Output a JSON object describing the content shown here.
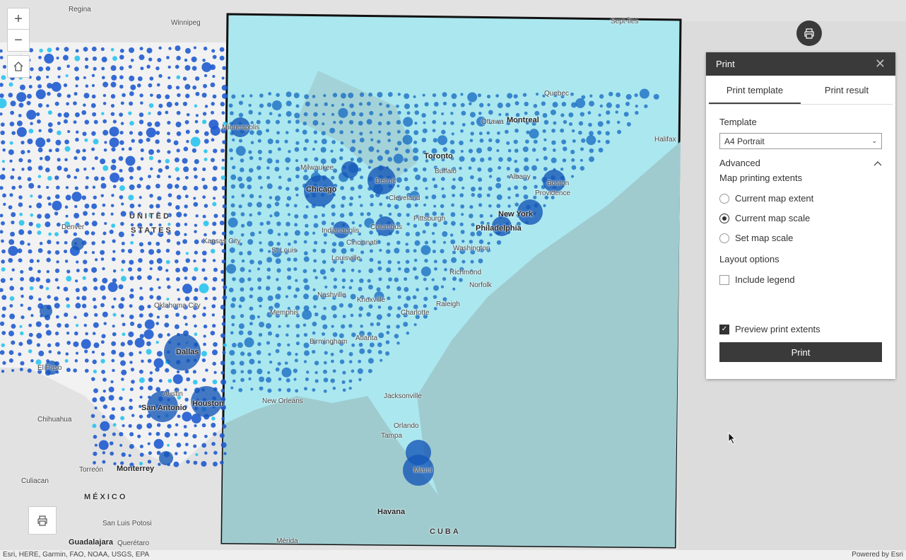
{
  "map": {
    "labels": {
      "regina": "Regina",
      "winnipeg": "Winnipeg",
      "septiles": "Sept-Îles",
      "quebec": "Quebec",
      "ottawa": "Ottawa",
      "montreal": "Montreal",
      "halifax": "Halifax",
      "toronto": "Toronto",
      "minneapolis": "Minneapolis",
      "milwaukee": "Milwaukee",
      "chicago": "Chicago",
      "detroit": "Detroit",
      "buffalo": "Buffalo",
      "albany": "Albany",
      "boston": "Boston",
      "providence": "Providence",
      "cleveland": "Cleveland",
      "pittsburgh": "Pittsburgh",
      "newyork": "New York",
      "philadelphia": "Philadelphia",
      "columbus": "Columbus",
      "indianapolis": "Indianapolis",
      "cincinnati": "Cincinnati",
      "washington": "Washington",
      "denver": "Denver",
      "kansascity": "Kansas City",
      "stlouis": "St Louis",
      "louisville": "Louisville",
      "richmond": "Richmond",
      "norfolk": "Norfolk",
      "nashville": "Nashville",
      "knoxville": "Knoxville",
      "oklahomacity": "Oklahoma City",
      "memphis": "Memphis",
      "charlotte": "Charlotte",
      "raleigh": "Raleigh",
      "dallas": "Dallas",
      "birmingham": "Birmingham",
      "atlanta": "Atlanta",
      "elpaso": "El Paso",
      "austin": "Austin",
      "sanantonio": "San Antonio",
      "houston": "Houston",
      "neworleans": "New Orleans",
      "jacksonville": "Jacksonville",
      "orlando": "Orlando",
      "tampa": "Tampa",
      "miami": "Miami",
      "chihuahua": "Chihuahua",
      "torreon": "Torreón",
      "monterrey": "Monterrey",
      "culiacan": "Culiacan",
      "mexico": "MÉXICO",
      "sanluispotosi": "San Luis Potosi",
      "guadalajara": "Guadalajara",
      "queretaro": "Querétaro",
      "merida": "Mérida",
      "havana": "Havana",
      "cuba": "CUBA",
      "unitedstates1": "UNITED",
      "unitedstates2": "STATES"
    },
    "attribution": "Esri, HERE, Garmin, FAO, NOAA, USGS, EPA",
    "powered_by": "Powered by Esri"
  },
  "controls": {
    "zoom_in": "+",
    "zoom_out": "−"
  },
  "print_panel": {
    "title": "Print",
    "tabs": [
      {
        "label": "Print template",
        "active": true
      },
      {
        "label": "Print result",
        "active": false
      }
    ],
    "template_label": "Template",
    "template_value": "A4 Portrait",
    "advanced_label": "Advanced",
    "extents_label": "Map printing extents",
    "extent_options": [
      {
        "label": "Current map extent",
        "selected": false
      },
      {
        "label": "Current map scale",
        "selected": true
      },
      {
        "label": "Set map scale",
        "selected": false
      }
    ],
    "layout_label": "Layout options",
    "include_legend": {
      "label": "Include legend",
      "checked": false
    },
    "preview_extents": {
      "label": "Preview print extents",
      "checked": true
    },
    "print_button": "Print"
  }
}
